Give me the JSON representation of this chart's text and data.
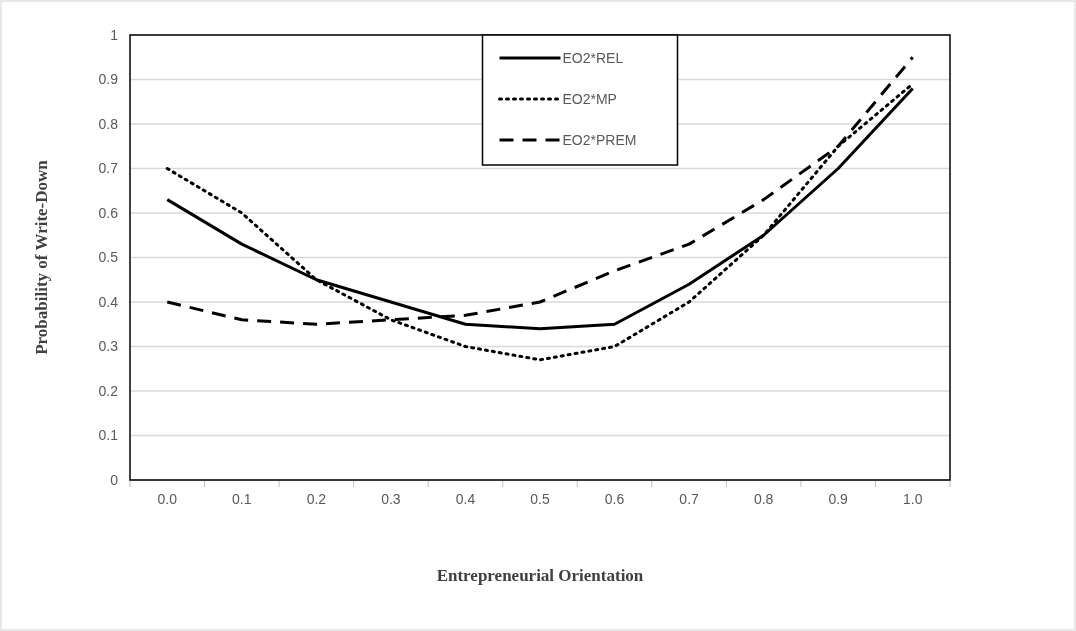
{
  "chart_data": {
    "type": "line",
    "xlabel": "Entrepreneurial Orientation",
    "ylabel": "Probability of Write-Down",
    "categories": [
      "0.0",
      "0.1",
      "0.2",
      "0.3",
      "0.4",
      "0.5",
      "0.6",
      "0.7",
      "0.8",
      "0.9",
      "1.0"
    ],
    "series": [
      {
        "name": "EO2*REL",
        "color": "#000000",
        "line_style": "solid",
        "values": [
          0.63,
          0.53,
          0.45,
          0.4,
          0.35,
          0.34,
          0.35,
          0.44,
          0.55,
          0.7,
          0.88
        ]
      },
      {
        "name": "EO2*MP",
        "color": "#000000",
        "line_style": "dotted",
        "values": [
          0.7,
          0.6,
          0.45,
          0.36,
          0.3,
          0.27,
          0.3,
          0.4,
          0.55,
          0.75,
          0.89
        ]
      },
      {
        "name": "EO2*PREM",
        "color": "#000000",
        "line_style": "dashed",
        "values": [
          0.4,
          0.36,
          0.35,
          0.36,
          0.37,
          0.4,
          0.47,
          0.53,
          0.63,
          0.75,
          0.95
        ]
      }
    ],
    "ylim": [
      0,
      1
    ],
    "yticks": [
      0,
      0.1,
      0.2,
      0.3,
      0.4,
      0.5,
      0.6,
      0.7,
      0.8,
      0.9,
      1
    ],
    "grid": "y",
    "legend": "top"
  }
}
